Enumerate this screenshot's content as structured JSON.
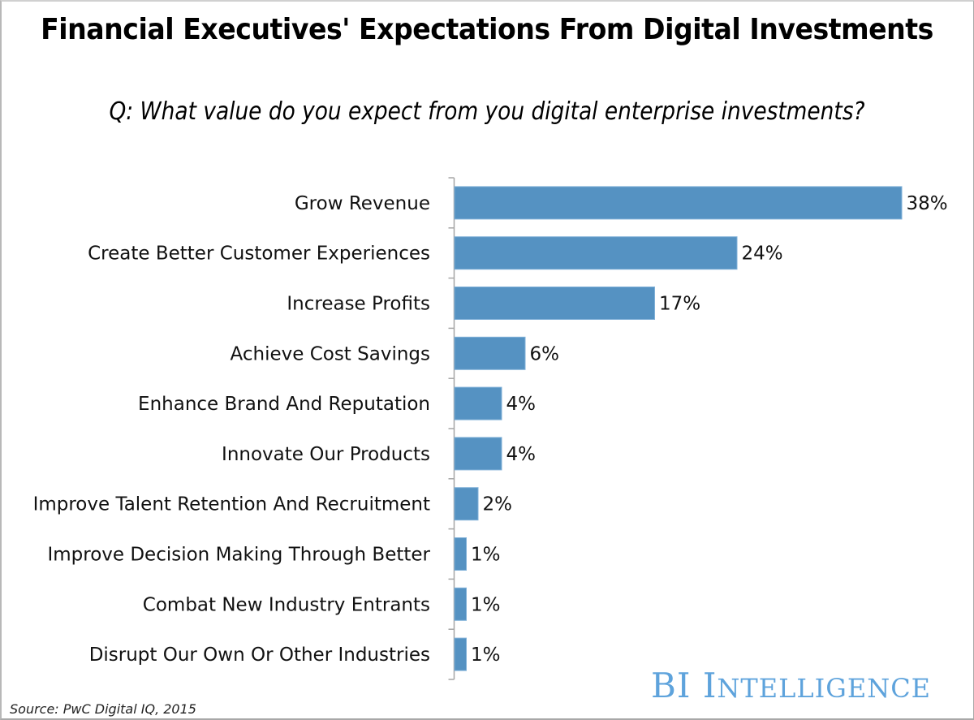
{
  "chart_data": {
    "type": "bar",
    "orientation": "horizontal",
    "title": "Financial Executives' Expectations From Digital Investments",
    "subtitle": "Q: What value do you expect from you digital enterprise investments?",
    "xlabel": "",
    "ylabel": "",
    "categories": [
      "Grow Revenue",
      "Create Better Customer Experiences",
      "Increase Profits",
      "Achieve Cost Savings",
      "Enhance Brand And Reputation",
      "Innovate Our Products",
      "Improve Talent Retention And Recruitment",
      "Improve Decision Making Through Better",
      "Combat New Industry Entrants",
      "Disrupt Our Own Or Other Industries"
    ],
    "values": [
      38,
      24,
      17,
      6,
      4,
      4,
      2,
      1,
      1,
      1
    ],
    "value_labels": [
      "38%",
      "24%",
      "17%",
      "6%",
      "4%",
      "4%",
      "2%",
      "1%",
      "1%",
      "1%"
    ],
    "unit": "%",
    "xlim": [
      0,
      38
    ],
    "grid": false,
    "legend": "none",
    "bar_color": "#5592c2"
  },
  "footer": {
    "source": "Source: PwC Digital IQ, 2015",
    "logo_first": "BI",
    "logo_big_i": "I",
    "logo_rest": "NTELLIGENCE"
  },
  "colors": {
    "bar": "#5592c2",
    "bar_edge": "#7fb0d8",
    "axis": "#a6a6a6",
    "logo": "#5ea3dc"
  }
}
